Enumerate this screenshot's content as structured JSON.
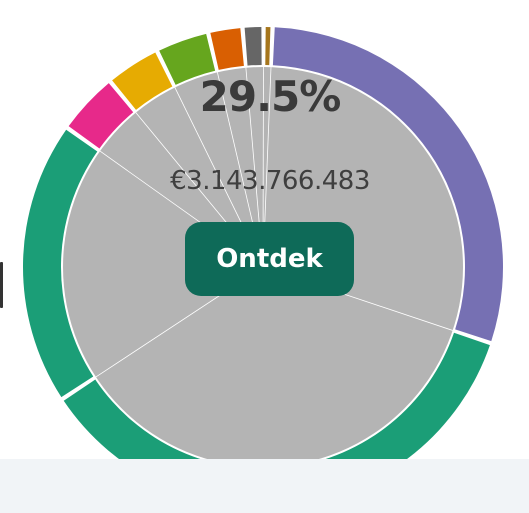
{
  "center": {
    "percent": "29.5%",
    "amount": "€3.143.766.483",
    "button_label": "Ontdek"
  },
  "chart_data": {
    "type": "pie",
    "inner_fill": "#b4b4b4",
    "slices": [
      {
        "value": 29.5,
        "color": "#7670b3"
      },
      {
        "value": 35.6,
        "color": "#1b9e77"
      },
      {
        "value": 19.1,
        "color": "#1b9e77"
      },
      {
        "value": 4.2,
        "color": "#e7298a"
      },
      {
        "value": 3.7,
        "color": "#e6ab02"
      },
      {
        "value": 3.6,
        "color": "#66a61e"
      },
      {
        "value": 2.3,
        "color": "#d95f02"
      },
      {
        "value": 1.4,
        "color": "#666666"
      },
      {
        "value": 0.6,
        "color": "#a6761d"
      }
    ]
  }
}
